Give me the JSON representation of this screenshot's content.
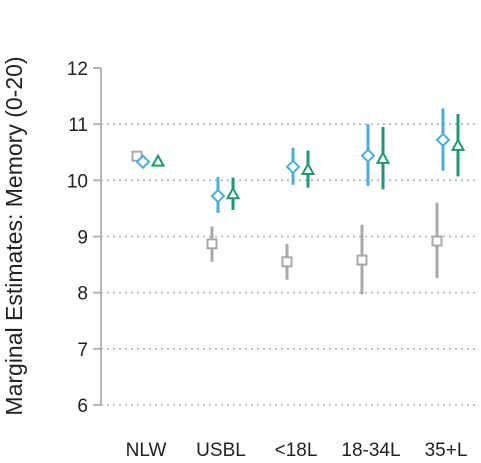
{
  "chart_data": {
    "type": "scatter",
    "subtype": "point-range",
    "ylabel": "Marginal Estimates: Memory (0-20)",
    "xlabel": "",
    "title": "",
    "ylim": [
      6,
      12
    ],
    "yticks": [
      6,
      7,
      8,
      9,
      10,
      11,
      12
    ],
    "grid": "horizontal-dotted",
    "legend": "none",
    "categories": [
      "NLW",
      "USBL",
      "<18L",
      "18-34L",
      "35+L"
    ],
    "series": [
      {
        "marker": "square",
        "color": "#aaaaaa",
        "points": [
          {
            "category": "NLW",
            "y": 10.43,
            "low": 10.43,
            "high": 10.43
          },
          {
            "category": "USBL",
            "y": 8.87,
            "low": 8.55,
            "high": 9.18
          },
          {
            "category": "<18L",
            "y": 8.55,
            "low": 8.23,
            "high": 8.87
          },
          {
            "category": "18-34L",
            "y": 8.58,
            "low": 7.97,
            "high": 9.21
          },
          {
            "category": "35+L",
            "y": 8.92,
            "low": 8.26,
            "high": 9.6
          }
        ]
      },
      {
        "marker": "diamond",
        "color": "#4aaee0",
        "points": [
          {
            "category": "NLW",
            "y": 10.33,
            "low": 10.33,
            "high": 10.33
          },
          {
            "category": "USBL",
            "y": 9.72,
            "low": 9.42,
            "high": 10.06
          },
          {
            "category": "<18L",
            "y": 10.24,
            "low": 9.92,
            "high": 10.58
          },
          {
            "category": "18-34L",
            "y": 10.44,
            "low": 9.9,
            "high": 11.0
          },
          {
            "category": "35+L",
            "y": 10.72,
            "low": 10.17,
            "high": 11.28
          }
        ]
      },
      {
        "marker": "triangle",
        "color": "#1e9a6c",
        "points": [
          {
            "category": "NLW",
            "y": 10.34,
            "low": 10.34,
            "high": 10.34
          },
          {
            "category": "USBL",
            "y": 9.76,
            "low": 9.47,
            "high": 10.05
          },
          {
            "category": "<18L",
            "y": 10.19,
            "low": 9.87,
            "high": 10.53
          },
          {
            "category": "18-34L",
            "y": 10.39,
            "low": 9.84,
            "high": 10.95
          },
          {
            "category": "35+L",
            "y": 10.62,
            "low": 10.07,
            "high": 11.18
          }
        ]
      }
    ]
  }
}
